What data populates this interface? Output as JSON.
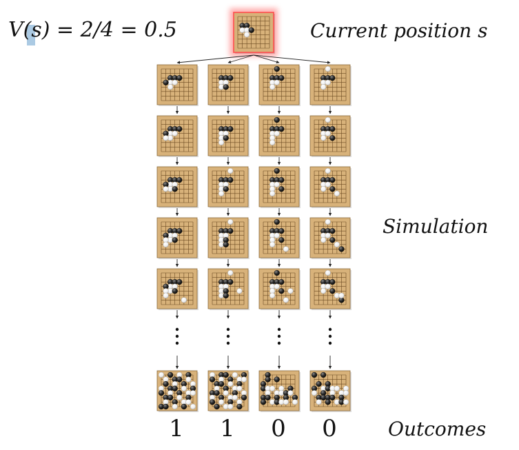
{
  "formula": "V(s) = 2/4 = 0.5",
  "labels": {
    "current_position": "Current position s",
    "simulation": "Simulation",
    "outcomes": "Outcomes"
  },
  "outcome_values": [
    "1",
    "1",
    "0",
    "0"
  ],
  "colors": {
    "board": "#d8b27a",
    "board_line": "#6b4a22",
    "highlight": "#ff6b6b",
    "formula_highlight": "#8fb8d9"
  }
}
